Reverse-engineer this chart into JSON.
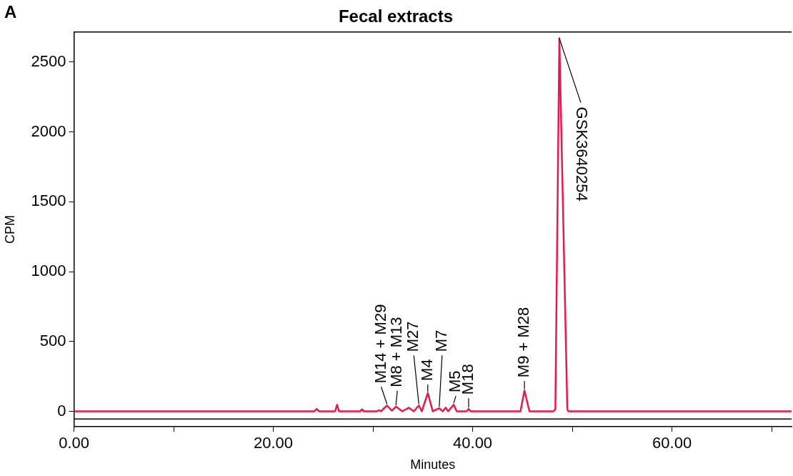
{
  "chart_data": {
    "type": "line",
    "title": "Fecal extracts",
    "xlabel": "Minutes",
    "ylabel": "CPM",
    "xlim": [
      0,
      72
    ],
    "ylim": [
      -110,
      2715
    ],
    "xticks": [
      {
        "value": 0,
        "label": "0.00"
      },
      {
        "value": 10,
        "label": null
      },
      {
        "value": 20,
        "label": "20.00"
      },
      {
        "value": 30,
        "label": null
      },
      {
        "value": 40,
        "label": "40.00"
      },
      {
        "value": 50,
        "label": null
      },
      {
        "value": 60,
        "label": "60.00"
      },
      {
        "value": 70,
        "label": null
      }
    ],
    "yticks": [
      0,
      500,
      1000,
      1500,
      2000,
      2500
    ],
    "grid": false,
    "legend": false,
    "marker": "none",
    "line_style": "solid",
    "ref_lines": [
      {
        "axis": "y",
        "value": -55,
        "color": "#000000"
      }
    ],
    "annotations": [
      "A",
      {
        "text": "M14 + M29",
        "x": 31.4,
        "y": 42
      },
      {
        "text": "M8 + M13",
        "x": 32.3,
        "y": 34
      },
      {
        "text": "M27",
        "x": 34.6,
        "y": 42
      },
      {
        "text": "M4",
        "x": 35.5,
        "y": 131
      },
      {
        "text": "M7",
        "x": 36.65,
        "y": 22
      },
      {
        "text": "M5",
        "x": 38.1,
        "y": 48
      },
      {
        "text": "M18",
        "x": 39.6,
        "y": 17
      },
      {
        "text": "M9 + M28",
        "x": 45.2,
        "y": 150
      },
      {
        "text": "GSK3640254",
        "x": 48.7,
        "y": 2670
      }
    ],
    "series": [
      {
        "color": "#e8194a",
        "x": [
          0,
          24.1,
          24.35,
          24.6,
          26.2,
          26.4,
          26.6,
          28.7,
          28.9,
          29.1,
          30.4,
          30.6,
          30.8,
          31.4,
          31.9,
          32.3,
          32.95,
          33.6,
          34.1,
          34.6,
          34.9,
          35.5,
          36.0,
          36.65,
          37.0,
          37.3,
          37.55,
          38.1,
          38.4,
          39.4,
          39.6,
          39.8,
          44.8,
          45.2,
          45.7,
          48.1,
          48.3,
          48.7,
          49.5,
          49.6,
          72
        ],
        "values": [
          0,
          0,
          17,
          0,
          0,
          47,
          0,
          0,
          14,
          0,
          0,
          8,
          0,
          42,
          5,
          34,
          0,
          26,
          0,
          42,
          0,
          131,
          0,
          22,
          0,
          26,
          0,
          48,
          0,
          0,
          17,
          0,
          0,
          150,
          0,
          0,
          15,
          2670,
          15,
          0,
          0
        ]
      }
    ]
  }
}
